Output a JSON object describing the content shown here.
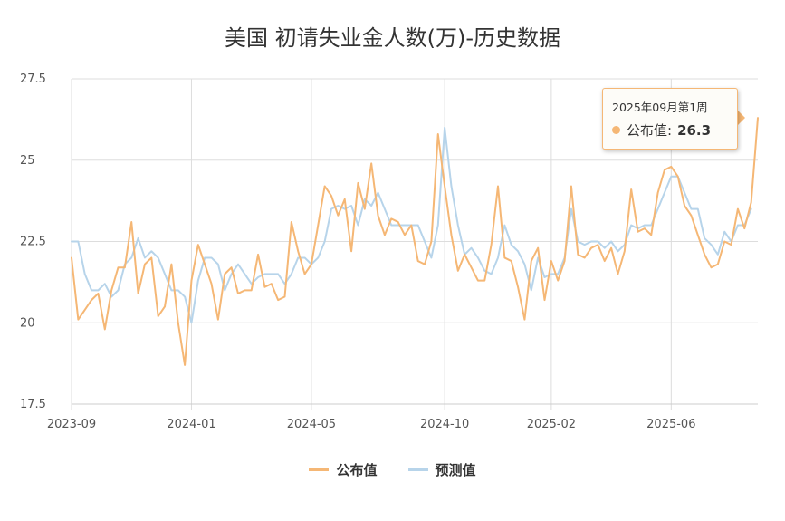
{
  "colors": {
    "published": "#f5b775",
    "forecast": "#b7d4ea",
    "grid": "#dddddd"
  },
  "chart_data": {
    "type": "line",
    "title": "美国 初请失业金人数(万)-历史数据",
    "xlabel": "",
    "ylabel": "",
    "ylim": [
      17.5,
      27.5
    ],
    "y_ticks": [
      "17.5",
      "20",
      "22.5",
      "25",
      "27.5"
    ],
    "x_ticks": [
      "2023-09",
      "2024-01",
      "2024-05",
      "2024-10",
      "2025-02",
      "2025-06"
    ],
    "x_tick_index": [
      0,
      18,
      36,
      56,
      72,
      90
    ],
    "grid": true,
    "legend_position": "bottom-center",
    "series": [
      {
        "name": "公布值",
        "color": "#f5b775",
        "values": [
          22.0,
          20.1,
          20.4,
          20.7,
          20.9,
          19.8,
          21.0,
          21.7,
          21.7,
          23.1,
          20.9,
          21.8,
          22.0,
          20.2,
          20.5,
          21.8,
          20.0,
          18.7,
          21.3,
          22.4,
          21.8,
          21.2,
          20.1,
          21.5,
          21.7,
          20.9,
          21.0,
          21.0,
          22.1,
          21.1,
          21.2,
          20.7,
          20.8,
          23.1,
          22.2,
          21.5,
          21.8,
          23.0,
          24.2,
          23.9,
          23.3,
          23.8,
          22.2,
          24.3,
          23.5,
          24.9,
          23.3,
          22.7,
          23.2,
          23.1,
          22.7,
          23.0,
          21.9,
          21.8,
          22.5,
          25.8,
          24.2,
          22.7,
          21.6,
          22.1,
          21.7,
          21.3,
          21.3,
          22.4,
          24.2,
          22.0,
          21.9,
          21.1,
          20.1,
          21.9,
          22.3,
          20.7,
          21.9,
          21.3,
          21.9,
          24.2,
          22.1,
          22.0,
          22.3,
          22.4,
          21.9,
          22.3,
          21.5,
          22.2,
          24.1,
          22.8,
          22.9,
          22.7,
          24.0,
          24.7,
          24.8,
          24.5,
          23.6,
          23.3,
          22.7,
          22.1,
          21.7,
          21.8,
          22.5,
          22.4,
          23.5,
          22.9,
          23.7,
          26.3
        ]
      },
      {
        "name": "预测值",
        "color": "#b7d4ea",
        "values": [
          22.5,
          22.5,
          21.5,
          21.0,
          21.0,
          21.2,
          20.8,
          21.0,
          21.8,
          22.0,
          22.6,
          22.0,
          22.2,
          22.0,
          21.5,
          21.0,
          21.0,
          20.8,
          20.0,
          21.3,
          22.0,
          22.0,
          21.8,
          21.0,
          21.5,
          21.8,
          21.5,
          21.2,
          21.4,
          21.5,
          21.5,
          21.5,
          21.2,
          21.5,
          22.0,
          22.0,
          21.8,
          22.0,
          22.5,
          23.5,
          23.6,
          23.5,
          23.6,
          23.0,
          23.8,
          23.6,
          24.0,
          23.5,
          23.0,
          23.0,
          23.0,
          23.0,
          23.0,
          22.5,
          22.0,
          23.0,
          26.0,
          24.2,
          23.0,
          22.1,
          22.3,
          22.0,
          21.6,
          21.5,
          22.0,
          23.0,
          22.4,
          22.2,
          21.8,
          21.0,
          22.0,
          21.4,
          21.5,
          21.5,
          22.0,
          23.5,
          22.5,
          22.4,
          22.5,
          22.5,
          22.3,
          22.5,
          22.2,
          22.4,
          23.0,
          22.9,
          23.0,
          23.0,
          23.5,
          24.0,
          24.5,
          24.5,
          24.0,
          23.5,
          23.5,
          22.6,
          22.4,
          22.1,
          22.8,
          22.5,
          23.0,
          23.0,
          23.5,
          null
        ]
      }
    ]
  },
  "legend": {
    "published": "公布值",
    "forecast": "预测值"
  },
  "tooltip": {
    "title": "2025年09月第1周",
    "series_label": "公布值:",
    "value": "26.3"
  }
}
